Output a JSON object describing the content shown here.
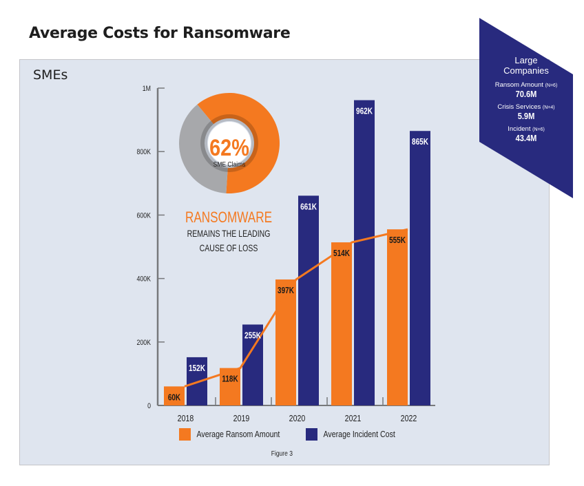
{
  "title": "Average Costs for Ransomware",
  "panel_label": "SMEs",
  "colors": {
    "ransom": "#f47920",
    "incident": "#282a7e",
    "donut_gray": "#a7a8ab",
    "panel_bg": "#dfe5ef"
  },
  "donut": {
    "percent_text": "62%",
    "subtitle": "SME Claims",
    "value": 62
  },
  "callout": {
    "headline": "RANSOMWARE",
    "line1": "REMAINS THE LEADING",
    "line2": "CAUSE OF LOSS"
  },
  "large_companies": {
    "title_line1": "Large",
    "title_line2": "Companies",
    "items": [
      {
        "label": "Ransom Amount",
        "n": "(N=6)",
        "value": "70.6M"
      },
      {
        "label": "Crisis Services",
        "n": "(N=4)",
        "value": "5.9M"
      },
      {
        "label": "Incident",
        "n": "(N=6)",
        "value": "43.4M"
      }
    ]
  },
  "figure_caption": "Figure 3",
  "chart_data": {
    "type": "bar",
    "title": "Average Costs for Ransomware",
    "subtitle": "SMEs",
    "categories": [
      "2018",
      "2019",
      "2020",
      "2021",
      "2022"
    ],
    "series": [
      {
        "name": "Average Ransom Amount",
        "values": [
          60,
          118,
          397,
          514,
          555
        ],
        "labels": [
          "60K",
          "118K",
          "397K",
          "514K",
          "555K"
        ],
        "also_line": true
      },
      {
        "name": "Average Incident Cost",
        "values": [
          152,
          255,
          661,
          962,
          865
        ],
        "labels": [
          "152K",
          "255K",
          "661K",
          "962K",
          "865K"
        ]
      }
    ],
    "units": "thousands USD",
    "yticks": [
      0,
      200,
      400,
      600,
      800,
      1000
    ],
    "ytick_labels": [
      "0",
      "200K",
      "400K",
      "600K",
      "800K",
      "1M"
    ],
    "ylim": [
      0,
      1000
    ],
    "xlabel": "",
    "ylabel": "",
    "grid": false,
    "legend": [
      "Average Ransom Amount",
      "Average Incident Cost"
    ],
    "legend_position": "bottom"
  }
}
